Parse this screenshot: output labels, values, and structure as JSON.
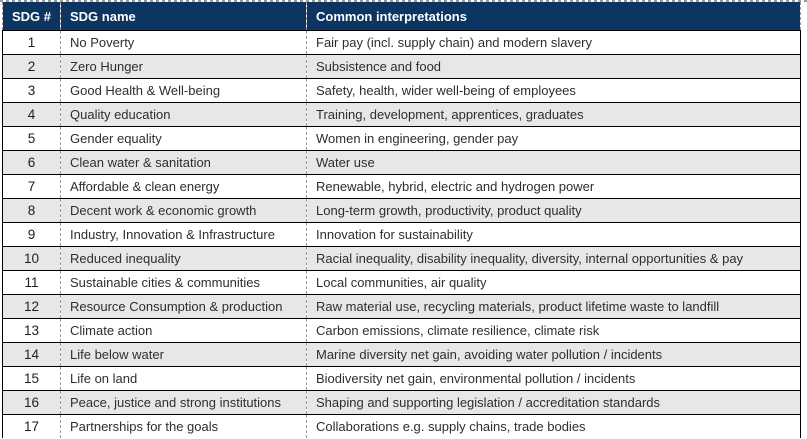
{
  "colors": {
    "header_bg": "#0d3562",
    "header_text": "#ffffff",
    "row_alt_bg": "#e8e7e7",
    "row_bg": "#ffffff",
    "body_text": "#2e2e2e",
    "solid_border": "#000000",
    "dashed_border": "#9a9a9a"
  },
  "table": {
    "columns": [
      {
        "key": "num",
        "label": "SDG #"
      },
      {
        "key": "name",
        "label": "SDG name"
      },
      {
        "key": "interp",
        "label": "Common interpretations"
      }
    ],
    "rows": [
      {
        "num": "1",
        "name": "No Poverty",
        "interp": "Fair pay (incl. supply chain) and modern slavery"
      },
      {
        "num": "2",
        "name": "Zero Hunger",
        "interp": "Subsistence and food"
      },
      {
        "num": "3",
        "name": "Good Health & Well-being",
        "interp": "Safety, health, wider well-being of employees"
      },
      {
        "num": "4",
        "name": "Quality education",
        "interp": "Training, development, apprentices, graduates"
      },
      {
        "num": "5",
        "name": "Gender equality",
        "interp": "Women in engineering, gender pay"
      },
      {
        "num": "6",
        "name": "Clean water & sanitation",
        "interp": "Water use"
      },
      {
        "num": "7",
        "name": "Affordable & clean energy",
        "interp": "Renewable, hybrid, electric and hydrogen power"
      },
      {
        "num": "8",
        "name": "Decent work & economic growth",
        "interp": "Long-term growth, productivity, product quality"
      },
      {
        "num": "9",
        "name": "Industry, Innovation & Infrastructure",
        "interp": "Innovation for sustainability"
      },
      {
        "num": "10",
        "name": "Reduced inequality",
        "interp": "Racial inequality, disability inequality, diversity, internal opportunities & pay"
      },
      {
        "num": "11",
        "name": "Sustainable cities & communities",
        "interp": "Local communities, air quality"
      },
      {
        "num": "12",
        "name": "Resource Consumption & production",
        "interp": "Raw material use, recycling materials, product lifetime waste to landfill"
      },
      {
        "num": "13",
        "name": "Climate action",
        "interp": "Carbon emissions, climate resilience, climate risk"
      },
      {
        "num": "14",
        "name": "Life below water",
        "interp": "Marine diversity net gain, avoiding water pollution / incidents"
      },
      {
        "num": "15",
        "name": "Life on land",
        "interp": "Biodiversity net gain, environmental pollution / incidents"
      },
      {
        "num": "16",
        "name": "Peace, justice and strong institutions",
        "interp": "Shaping and supporting legislation / accreditation standards"
      },
      {
        "num": "17",
        "name": "Partnerships for the goals",
        "interp": "Collaborations e.g. supply chains, trade bodies"
      }
    ]
  }
}
